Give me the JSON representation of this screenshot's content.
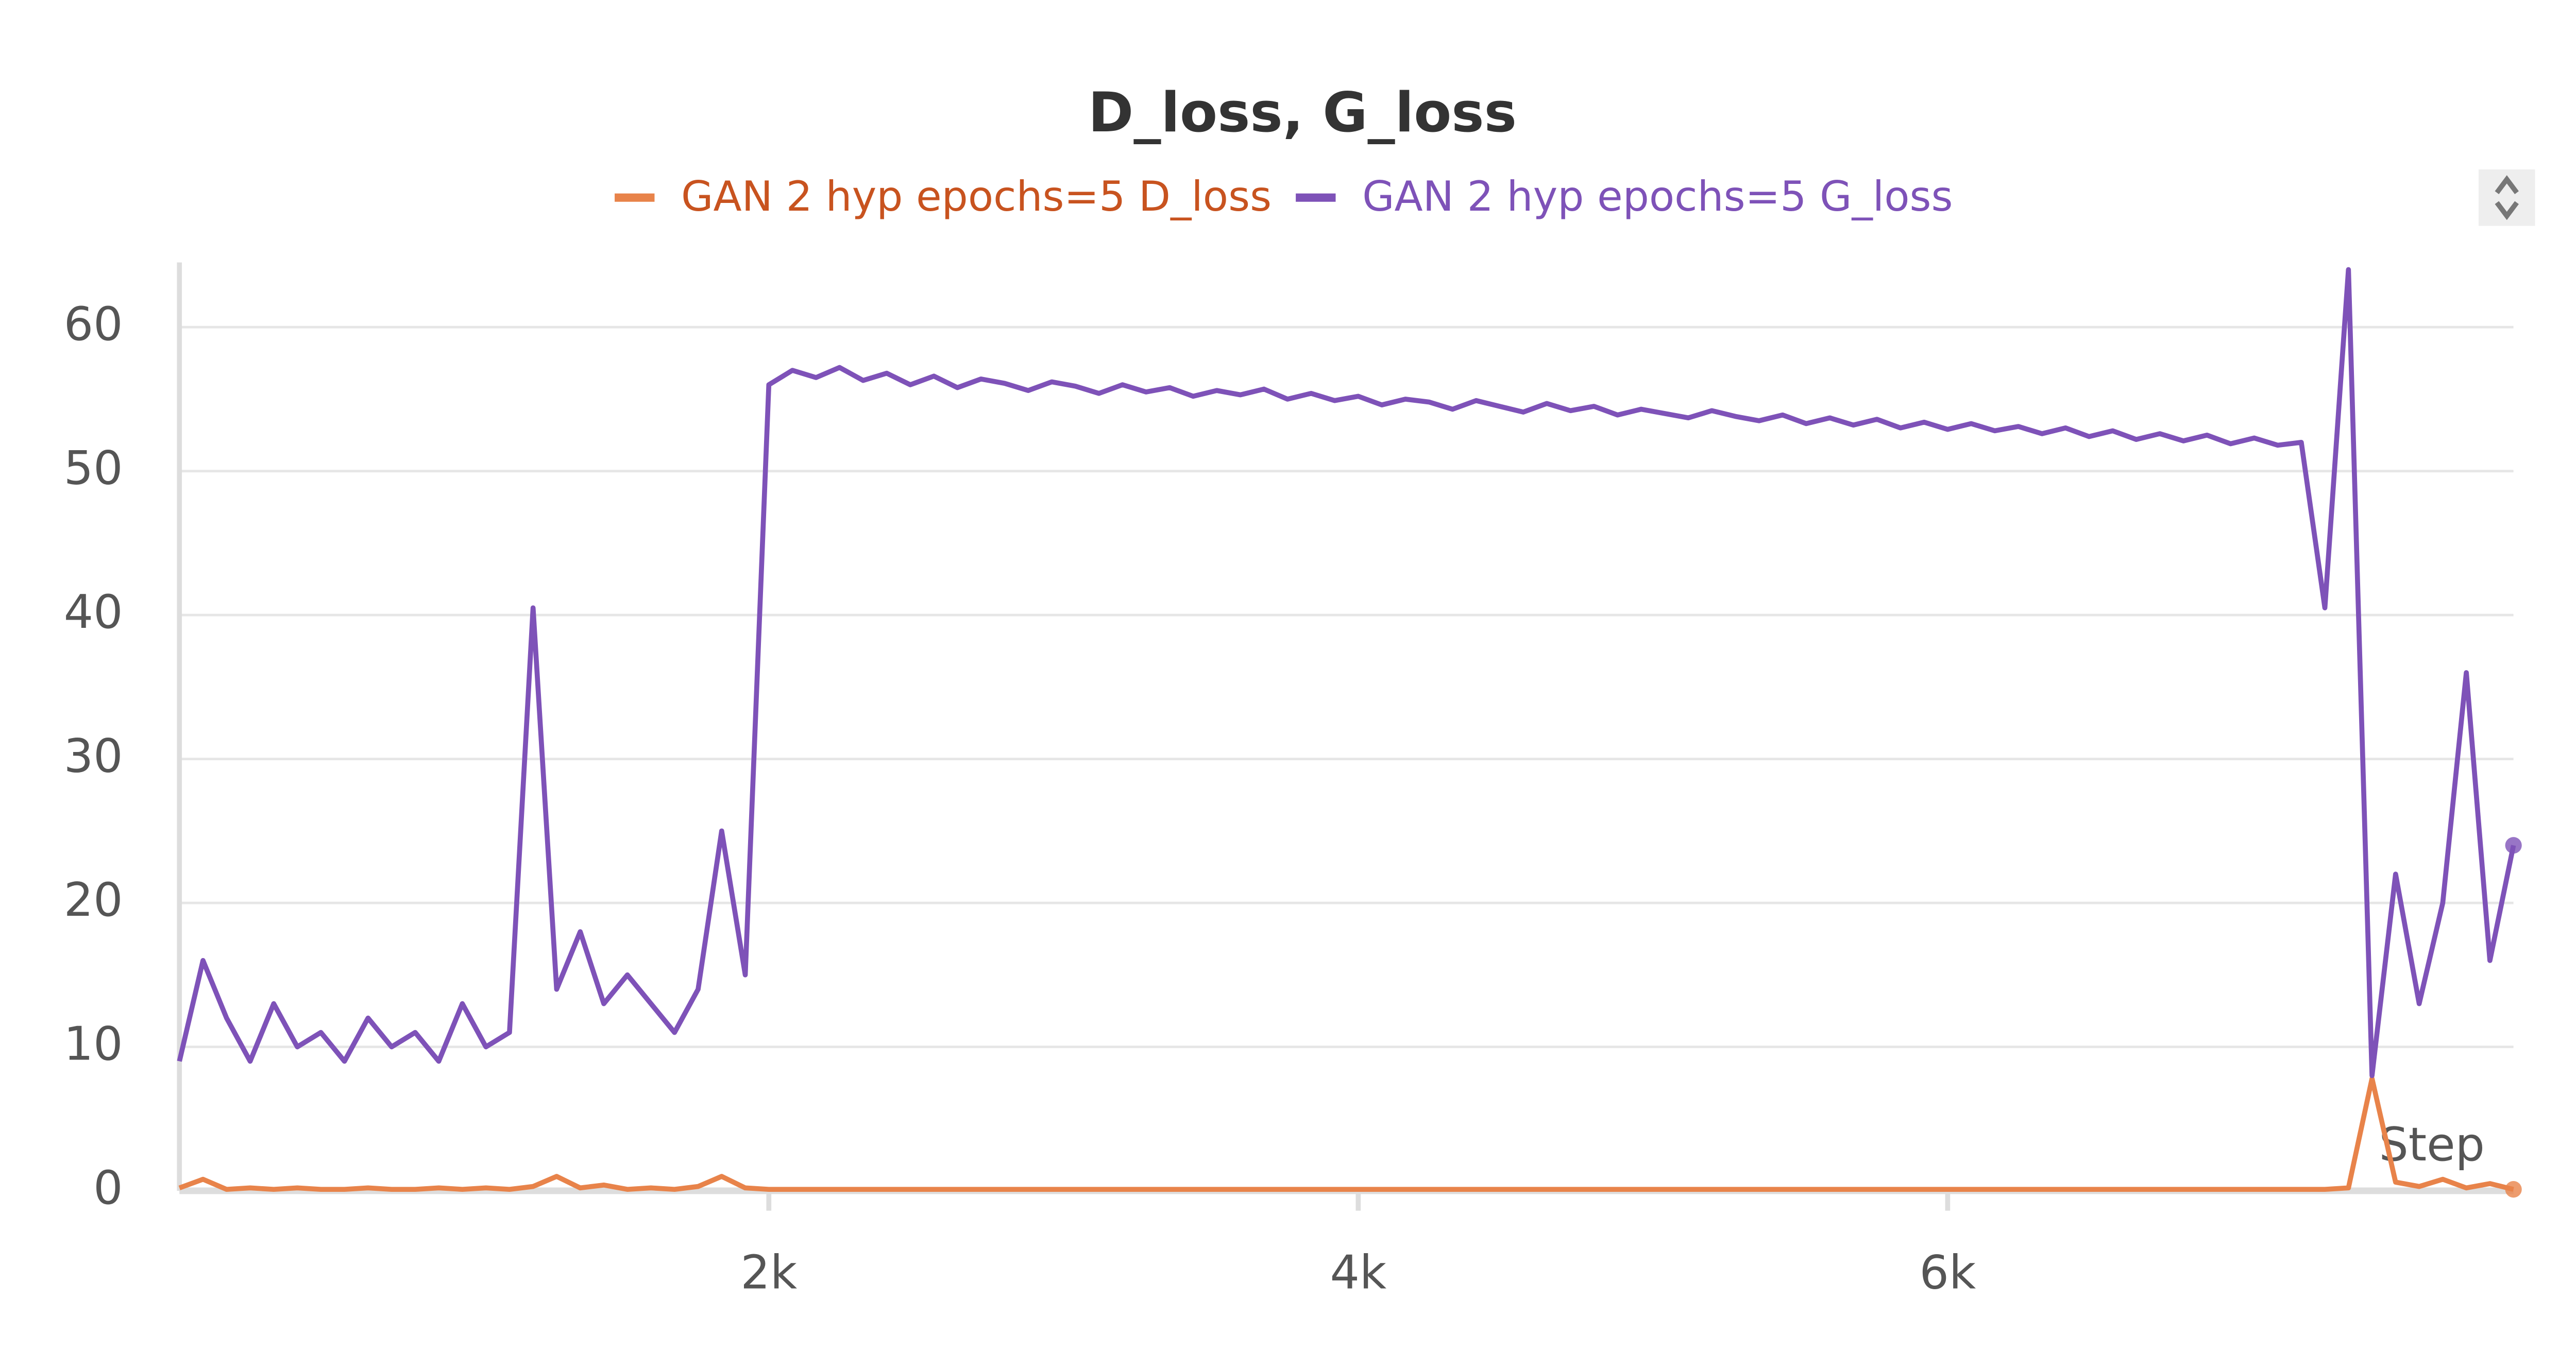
{
  "chart_data": {
    "type": "line",
    "title": "D_loss, G_loss",
    "x_label": "Step",
    "x": [
      0,
      80,
      160,
      240,
      320,
      400,
      480,
      560,
      640,
      720,
      800,
      880,
      960,
      1040,
      1120,
      1200,
      1280,
      1360,
      1440,
      1520,
      1600,
      1680,
      1760,
      1840,
      1920,
      2000,
      2080,
      2160,
      2240,
      2320,
      2400,
      2480,
      2560,
      2640,
      2720,
      2800,
      2880,
      2960,
      3040,
      3120,
      3200,
      3280,
      3360,
      3440,
      3520,
      3600,
      3680,
      3760,
      3840,
      3920,
      4000,
      4080,
      4160,
      4240,
      4320,
      4400,
      4480,
      4560,
      4640,
      4720,
      4800,
      4880,
      4960,
      5040,
      5120,
      5200,
      5280,
      5360,
      5440,
      5520,
      5600,
      5680,
      5760,
      5840,
      5920,
      6000,
      6080,
      6160,
      6240,
      6320,
      6400,
      6480,
      6560,
      6640,
      6720,
      6800,
      6880,
      6960,
      7040,
      7120,
      7200,
      7280,
      7360,
      7440,
      7520,
      7600,
      7680,
      7760,
      7840,
      7920
    ],
    "series": [
      {
        "name": "GAN 2 hyp epochs=5 D_loss",
        "color": "#e8834a",
        "text_color": "#c8531f",
        "values": [
          0.2,
          0.8,
          0.1,
          0.2,
          0.1,
          0.2,
          0.1,
          0.1,
          0.2,
          0.1,
          0.1,
          0.2,
          0.1,
          0.2,
          0.1,
          0.3,
          1,
          0.2,
          0.4,
          0.1,
          0.2,
          0.1,
          0.3,
          1,
          0.2,
          0.1,
          0.1,
          0.1,
          0.1,
          0.1,
          0.1,
          0.1,
          0.1,
          0.1,
          0.1,
          0.1,
          0.1,
          0.1,
          0.1,
          0.1,
          0.1,
          0.1,
          0.1,
          0.1,
          0.1,
          0.1,
          0.1,
          0.1,
          0.1,
          0.1,
          0.1,
          0.1,
          0.1,
          0.1,
          0.1,
          0.1,
          0.1,
          0.1,
          0.1,
          0.1,
          0.1,
          0.1,
          0.1,
          0.1,
          0.1,
          0.1,
          0.1,
          0.1,
          0.1,
          0.1,
          0.1,
          0.1,
          0.1,
          0.1,
          0.1,
          0.1,
          0.1,
          0.1,
          0.1,
          0.1,
          0.1,
          0.1,
          0.1,
          0.1,
          0.1,
          0.1,
          0.1,
          0.1,
          0.1,
          0.1,
          0.1,
          0.1,
          0.2,
          7.8,
          0.6,
          0.3,
          0.8,
          0.2,
          0.5,
          0.1
        ]
      },
      {
        "name": "GAN 2 hyp epochs=5 G_loss",
        "color": "#7e52b8",
        "text_color": "#7e52b8",
        "values": [
          9,
          16,
          12,
          9,
          13,
          10,
          11,
          9,
          12,
          10,
          11,
          9,
          13,
          10,
          11,
          40.5,
          14,
          18,
          13,
          15,
          13,
          11,
          14,
          25,
          15,
          56,
          57,
          56.5,
          57.2,
          56.3,
          56.8,
          56,
          56.6,
          55.8,
          56.4,
          56.1,
          55.6,
          56.2,
          55.9,
          55.4,
          56,
          55.5,
          55.8,
          55.2,
          55.6,
          55.3,
          55.7,
          55,
          55.4,
          54.9,
          55.2,
          54.6,
          55,
          54.8,
          54.3,
          54.9,
          54.5,
          54.1,
          54.7,
          54.2,
          54.5,
          53.9,
          54.3,
          54,
          53.7,
          54.2,
          53.8,
          53.5,
          53.9,
          53.3,
          53.7,
          53.2,
          53.6,
          53,
          53.4,
          52.9,
          53.3,
          52.8,
          53.1,
          52.6,
          53,
          52.4,
          52.8,
          52.2,
          52.6,
          52.1,
          52.5,
          51.9,
          52.3,
          51.8,
          52,
          40.5,
          64,
          8,
          22,
          13,
          20,
          36,
          16,
          24
        ]
      }
    ],
    "xlim": [
      0,
      7920
    ],
    "ylim": [
      0,
      64.5
    ],
    "xticks": [
      {
        "value": 2000,
        "label": "2k"
      },
      {
        "value": 4000,
        "label": "4k"
      },
      {
        "value": 6000,
        "label": "6k"
      }
    ],
    "yticks": [
      0,
      10,
      20,
      30,
      40,
      50,
      60
    ],
    "grid": true
  }
}
